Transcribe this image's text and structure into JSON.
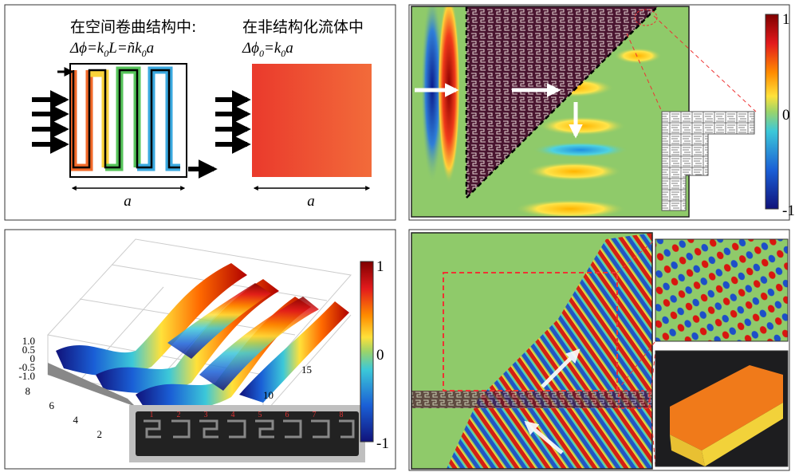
{
  "panel_a": {
    "left_title": "在空间卷曲结构中:",
    "left_formula": [
      "Δϕ=k",
      "0",
      "L=ñk",
      "0",
      "a"
    ],
    "right_title": "在非结构化流体中",
    "right_formula": [
      "Δϕ",
      "0",
      "=k",
      "0",
      "a"
    ],
    "left_width_label": "a",
    "right_width_label": "a"
  },
  "panel_b": {
    "colorbar_labels": [
      "1",
      "0",
      "-1"
    ]
  },
  "panel_c": {
    "colorbar_labels": [
      "1",
      "0",
      "-1"
    ],
    "z_ticks": [
      "1.0",
      "0.5",
      "0",
      "-0.5",
      "-1.0"
    ],
    "y_ticks": [
      "8",
      "6",
      "4",
      "2"
    ],
    "x_ticks": [
      "10",
      "15"
    ],
    "photo_labels": [
      "1",
      "2",
      "3",
      "4",
      "5",
      "6",
      "7",
      "8"
    ]
  }
}
